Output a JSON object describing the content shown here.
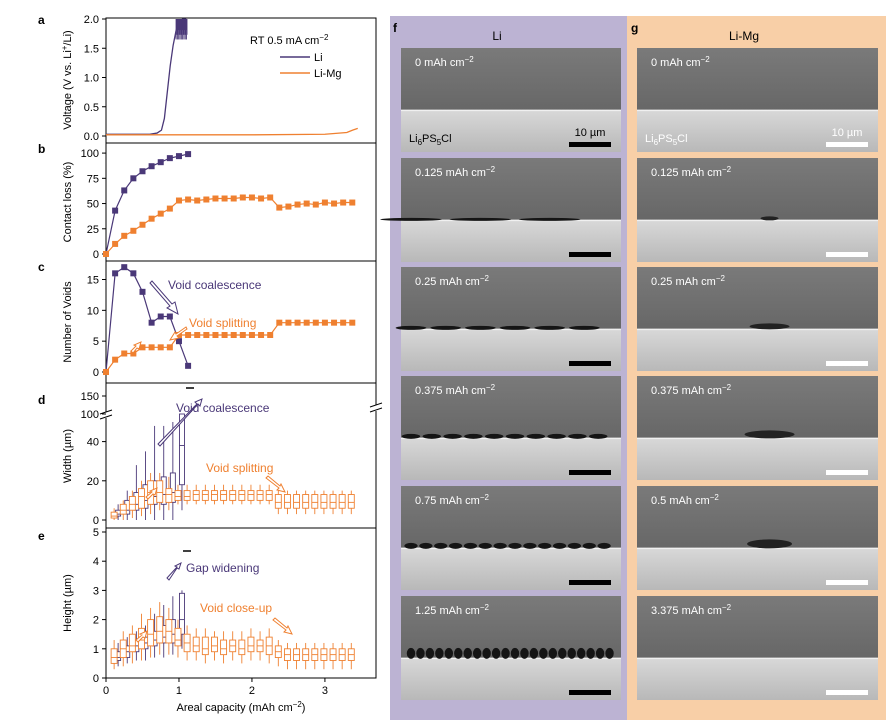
{
  "colors": {
    "li": "#4a3878",
    "limg": "#ef8030",
    "panel_f_bg": "#bcb3d3",
    "panel_g_bg": "#f8cfa7"
  },
  "panel_labels": {
    "a": "a",
    "b": "b",
    "c": "c",
    "d": "d",
    "e": "e",
    "f": "f",
    "g": "g"
  },
  "axis": {
    "xlabel": "Areal capacity (mAh cm",
    "xlabel_sup": "−2",
    "xlabel_close": ")",
    "xticks": [
      "0",
      "1",
      "2",
      "3"
    ]
  },
  "chart_data": [
    {
      "id": "voltage",
      "type": "line",
      "ylabel": "Voltage (V vs. Li",
      "ylabel_sup": "+",
      "ylabel_close": "/Li)",
      "ylim": [
        0,
        2.0
      ],
      "yticks": [
        "0.0",
        "0.5",
        "1.0",
        "1.5",
        "2.0"
      ],
      "ytick_values": [
        0,
        0.5,
        1.0,
        1.5,
        2.0
      ],
      "legend_title": "RT 0.5 mA cm",
      "legend_title_sup": "−2",
      "series": [
        {
          "name": "Li",
          "x": [
            0,
            0.6,
            0.7,
            0.76,
            0.8,
            0.84,
            0.88,
            0.92,
            0.96,
            1.0,
            1.05,
            1.1
          ],
          "y": [
            0.03,
            0.03,
            0.05,
            0.1,
            0.3,
            0.75,
            1.2,
            1.55,
            1.8,
            1.95,
            2.0,
            2.0
          ]
        },
        {
          "name": "Li-Mg",
          "x": [
            0,
            1.0,
            2.0,
            3.0,
            3.3,
            3.38,
            3.45
          ],
          "y": [
            0.02,
            0.02,
            0.02,
            0.03,
            0.06,
            0.1,
            0.13
          ]
        }
      ]
    },
    {
      "id": "contact_loss",
      "type": "line",
      "ylabel": "Contact loss (%)",
      "ylim": [
        0,
        110
      ],
      "yticks": [
        "0",
        "25",
        "50",
        "75",
        "100"
      ],
      "ytick_values": [
        0,
        25,
        50,
        75,
        100
      ],
      "series": [
        {
          "name": "Li",
          "x": [
            0,
            0.125,
            0.25,
            0.375,
            0.5,
            0.625,
            0.75,
            0.875,
            1.0,
            1.125
          ],
          "y": [
            0,
            43,
            63,
            75,
            82,
            87,
            91,
            95,
            97,
            99
          ]
        },
        {
          "name": "Li-Mg",
          "x": [
            0,
            0.125,
            0.25,
            0.375,
            0.5,
            0.625,
            0.75,
            0.875,
            1.0,
            1.125,
            1.25,
            1.375,
            1.5,
            1.625,
            1.75,
            1.875,
            2.0,
            2.125,
            2.25,
            2.375,
            2.5,
            2.625,
            2.75,
            2.875,
            3.0,
            3.125,
            3.25,
            3.375
          ],
          "y": [
            0,
            10,
            18,
            23,
            29,
            35,
            40,
            45,
            53,
            54,
            53,
            54,
            55,
            55,
            55,
            56,
            56,
            55,
            56,
            46,
            47,
            49,
            50,
            49,
            51,
            50,
            51,
            51
          ]
        }
      ]
    },
    {
      "id": "num_voids",
      "type": "line",
      "ylabel": "Number of Voids",
      "ylim": [
        0,
        18
      ],
      "yticks": [
        "0",
        "5",
        "10",
        "15"
      ],
      "ytick_values": [
        0,
        5,
        10,
        15
      ],
      "annotations": [
        "Void coalescence",
        "Void splitting"
      ],
      "series": [
        {
          "name": "Li",
          "x": [
            0,
            0.125,
            0.25,
            0.375,
            0.5,
            0.625,
            0.75,
            0.875,
            1.0,
            1.125
          ],
          "y": [
            0,
            16,
            17,
            16,
            13,
            8,
            9,
            9,
            5,
            1
          ]
        },
        {
          "name": "Li-Mg",
          "x": [
            0,
            0.125,
            0.25,
            0.375,
            0.5,
            0.625,
            0.75,
            0.875,
            1.0,
            1.125,
            1.25,
            1.375,
            1.5,
            1.625,
            1.75,
            1.875,
            2.0,
            2.125,
            2.25,
            2.375,
            2.5,
            2.625,
            2.75,
            2.875,
            3.0,
            3.125,
            3.25,
            3.375
          ],
          "y": [
            0,
            2,
            3,
            3,
            4,
            4,
            4,
            4,
            6,
            6,
            6,
            6,
            6,
            6,
            6,
            6,
            6,
            6,
            6,
            8,
            8,
            8,
            8,
            8,
            8,
            8,
            8,
            8
          ]
        }
      ]
    },
    {
      "id": "width",
      "type": "box",
      "ylabel": "Width (µm)",
      "yticks": [
        "0",
        "20",
        "40",
        "100",
        "150"
      ],
      "annotations": [
        "Void coalescence",
        "Void splitting"
      ],
      "series": [
        {
          "name": "Li",
          "x": [
            0.125,
            0.25,
            0.375,
            0.5,
            0.625,
            0.75,
            0.875,
            1.0
          ],
          "q1": [
            2,
            3,
            5,
            6,
            8,
            8,
            9,
            18
          ],
          "q3": [
            5,
            10,
            14,
            18,
            20,
            22,
            24,
            100
          ],
          "med": [
            3,
            5,
            8,
            10,
            12,
            13,
            14,
            38
          ],
          "lo": [
            0,
            0,
            0,
            0,
            0,
            0,
            0,
            5
          ],
          "hi": [
            8,
            15,
            28,
            35,
            48,
            48,
            50,
            100
          ]
        },
        {
          "name": "Li-Mg",
          "x": [
            0.125,
            0.25,
            0.375,
            0.5,
            0.625,
            0.75,
            0.875,
            1.0,
            1.125,
            1.25,
            1.375,
            1.5,
            1.625,
            1.75,
            1.875,
            2.0,
            2.125,
            2.25,
            2.375,
            2.5,
            2.625,
            2.75,
            2.875,
            3.0,
            3.125,
            3.25,
            3.375
          ],
          "q1": [
            1,
            3,
            5,
            6,
            8,
            9,
            9,
            10,
            10,
            10,
            10,
            10,
            10,
            10,
            10,
            10,
            10,
            10,
            6,
            6,
            6,
            6,
            6,
            6,
            6,
            6,
            6
          ],
          "q3": [
            4,
            8,
            12,
            16,
            20,
            20,
            16,
            15,
            15,
            15,
            15,
            15,
            15,
            15,
            15,
            15,
            15,
            15,
            13,
            13,
            13,
            13,
            13,
            13,
            13,
            13,
            13
          ],
          "med": [
            2,
            5,
            8,
            12,
            14,
            14,
            13,
            12,
            12,
            13,
            13,
            13,
            13,
            13,
            13,
            13,
            13,
            13,
            9,
            9,
            9,
            9,
            9,
            9,
            9,
            9,
            9
          ],
          "lo": [
            0,
            0,
            1,
            2,
            3,
            5,
            5,
            8,
            8,
            8,
            8,
            8,
            8,
            8,
            8,
            8,
            8,
            8,
            3,
            3,
            3,
            3,
            3,
            3,
            3,
            3,
            3
          ],
          "hi": [
            6,
            10,
            15,
            20,
            24,
            24,
            22,
            18,
            18,
            18,
            18,
            18,
            18,
            18,
            18,
            18,
            18,
            18,
            15,
            15,
            15,
            15,
            15,
            15,
            15,
            15,
            15
          ]
        }
      ]
    },
    {
      "id": "height",
      "type": "box",
      "ylabel": "Height (µm)",
      "ylim": [
        0,
        5
      ],
      "yticks": [
        "0",
        "1",
        "2",
        "3",
        "4",
        "5"
      ],
      "ytick_values": [
        0,
        1,
        2,
        3,
        4,
        5
      ],
      "annotations": [
        "Gap widening",
        "Void close-up"
      ],
      "series": [
        {
          "name": "Li",
          "x": [
            0.125,
            0.25,
            0.375,
            0.5,
            0.625,
            0.75,
            0.875,
            1.0
          ],
          "q1": [
            0.6,
            0.7,
            0.9,
            1.0,
            1.1,
            1.2,
            1.2,
            1.5
          ],
          "q3": [
            0.9,
            1.1,
            1.3,
            1.4,
            1.6,
            1.8,
            2.0,
            2.9
          ],
          "med": [
            0.7,
            0.9,
            1.1,
            1.2,
            1.3,
            1.4,
            1.5,
            2.0
          ],
          "lo": [
            0.4,
            0.5,
            0.6,
            0.6,
            0.7,
            0.7,
            0.8,
            1.0
          ],
          "hi": [
            1.2,
            1.4,
            1.6,
            1.8,
            2.2,
            2.5,
            2.8,
            3.0
          ]
        },
        {
          "name": "Li-Mg",
          "x": [
            0.125,
            0.25,
            0.375,
            0.5,
            0.625,
            0.75,
            0.875,
            1.0,
            1.125,
            1.25,
            1.375,
            1.5,
            1.625,
            1.75,
            1.875,
            2.0,
            2.125,
            2.25,
            2.375,
            2.5,
            2.625,
            2.75,
            2.875,
            3.0,
            3.125,
            3.25,
            3.375
          ],
          "q1": [
            0.5,
            0.7,
            0.9,
            1.0,
            1.1,
            1.2,
            1.2,
            1.1,
            0.9,
            0.9,
            0.8,
            0.9,
            0.8,
            0.9,
            0.8,
            0.9,
            0.9,
            0.8,
            0.7,
            0.6,
            0.6,
            0.6,
            0.6,
            0.6,
            0.6,
            0.6,
            0.6
          ],
          "q3": [
            1.0,
            1.3,
            1.5,
            1.7,
            2.0,
            2.1,
            2.0,
            1.7,
            1.5,
            1.4,
            1.4,
            1.4,
            1.3,
            1.3,
            1.3,
            1.4,
            1.3,
            1.4,
            1.1,
            1.0,
            1.0,
            1.0,
            1.0,
            1.0,
            1.0,
            1.0,
            1.0
          ],
          "med": [
            0.7,
            1.0,
            1.1,
            1.3,
            1.5,
            1.6,
            1.6,
            1.3,
            1.2,
            1.1,
            1.0,
            1.1,
            1.0,
            1.1,
            1.0,
            1.1,
            1.1,
            1.1,
            0.9,
            0.8,
            0.8,
            0.8,
            0.8,
            0.8,
            0.8,
            0.8,
            0.8
          ],
          "lo": [
            0.3,
            0.4,
            0.5,
            0.6,
            0.7,
            0.8,
            0.8,
            0.7,
            0.6,
            0.6,
            0.5,
            0.6,
            0.5,
            0.6,
            0.5,
            0.6,
            0.6,
            0.5,
            0.4,
            0.3,
            0.3,
            0.3,
            0.3,
            0.3,
            0.3,
            0.3,
            0.3
          ],
          "hi": [
            1.3,
            1.6,
            1.8,
            2.2,
            2.4,
            2.6,
            2.4,
            2.0,
            1.8,
            1.7,
            1.7,
            1.6,
            1.6,
            1.6,
            1.6,
            1.7,
            1.6,
            1.7,
            1.3,
            1.2,
            1.2,
            1.2,
            1.2,
            1.2,
            1.2,
            1.2,
            1.2
          ]
        }
      ]
    }
  ],
  "panel_f": {
    "title": "Li",
    "material": "Li",
    "material_sub1": "6",
    "material_mid": "PS",
    "material_sub2": "5",
    "material_end": "Cl",
    "scale_label": "10 µm",
    "images": [
      {
        "label": "0 mAh cm",
        "sup": "−2"
      },
      {
        "label": "0.125 mAh cm",
        "sup": "−2"
      },
      {
        "label": "0.25 mAh cm",
        "sup": "−2"
      },
      {
        "label": "0.375 mAh cm",
        "sup": "−2"
      },
      {
        "label": "0.75 mAh cm",
        "sup": "−2"
      },
      {
        "label": "1.25 mAh cm",
        "sup": "−2"
      }
    ]
  },
  "panel_g": {
    "title": "Li-Mg",
    "material": "Li",
    "material_sub1": "6",
    "material_mid": "PS",
    "material_sub2": "5",
    "material_end": "Cl",
    "scale_label": "10 µm",
    "images": [
      {
        "label": "0 mAh cm",
        "sup": "−2"
      },
      {
        "label": "0.125 mAh cm",
        "sup": "−2"
      },
      {
        "label": "0.25 mAh cm",
        "sup": "−2"
      },
      {
        "label": "0.375 mAh cm",
        "sup": "−2"
      },
      {
        "label": "0.5 mAh cm",
        "sup": "−2"
      },
      {
        "label": "3.375 mAh cm",
        "sup": "−2"
      }
    ]
  }
}
